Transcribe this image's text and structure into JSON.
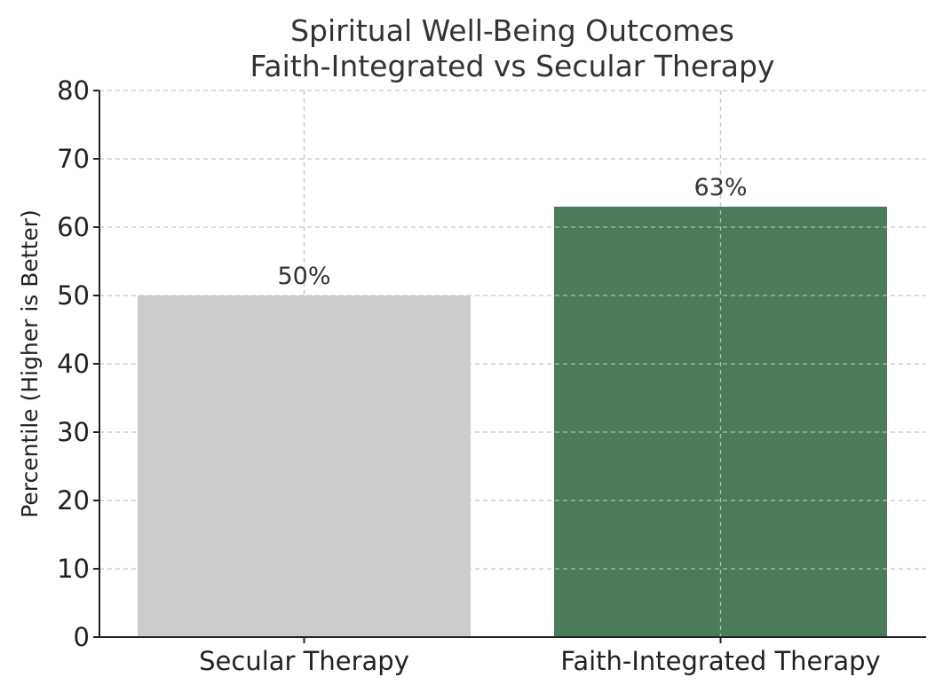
{
  "chart_data": {
    "type": "bar",
    "title": "Spiritual Well-Being Outcomes",
    "subtitle": "Faith-Integrated vs Secular Therapy",
    "xlabel": "",
    "ylabel": "Percentile (Higher is Better)",
    "categories": [
      "Secular Therapy",
      "Faith-Integrated Therapy"
    ],
    "values": [
      50,
      63
    ],
    "data_labels": [
      "50%",
      "63%"
    ],
    "colors": [
      "#cccccc",
      "#4a7c59"
    ],
    "ylim": [
      0,
      80
    ],
    "yticks": [
      0,
      10,
      20,
      30,
      40,
      50,
      60,
      70,
      80
    ],
    "ytick_labels": [
      "0",
      "10",
      "20",
      "30",
      "40",
      "50",
      "60",
      "70",
      "80"
    ],
    "grid": true,
    "grid_style": "dashed",
    "grid_color": "#cccccc",
    "axis_color": "#222222"
  }
}
